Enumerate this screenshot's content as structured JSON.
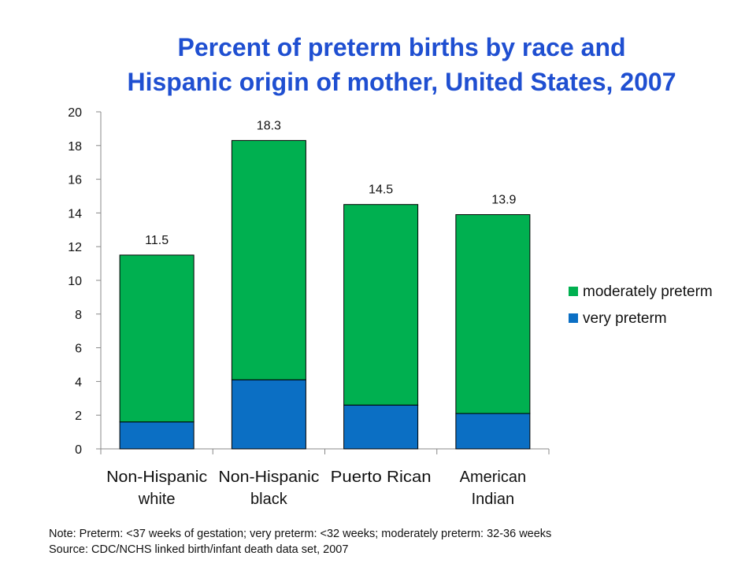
{
  "chart_data": {
    "type": "bar",
    "stacked": true,
    "title": [
      "Percent of preterm births by race and",
      "Hispanic origin of mother, United States, 2007"
    ],
    "categories": [
      [
        "Non-Hispanic",
        "white"
      ],
      [
        "Non-Hispanic",
        "black"
      ],
      [
        "Puerto Rican"
      ],
      [
        "American",
        "Indian"
      ]
    ],
    "series": [
      {
        "name": "very preterm",
        "color": "#0b6fc4",
        "values": [
          1.6,
          4.1,
          2.6,
          2.1
        ]
      },
      {
        "name": "moderately preterm",
        "color": "#00b050",
        "values": [
          9.9,
          14.2,
          11.9,
          11.8
        ]
      }
    ],
    "totals": [
      "11.5",
      "18.3",
      "14.5",
      "13.9"
    ],
    "ylim": [
      0,
      20
    ],
    "yticks": [
      "0",
      "2",
      "4",
      "6",
      "8",
      "10",
      "12",
      "14",
      "16",
      "18",
      "20"
    ],
    "legend_position": "right",
    "legend": [
      "moderately preterm",
      "very preterm"
    ],
    "grid": false
  },
  "notes": {
    "note": "Note:  Preterm: <37 weeks of gestation; very preterm: <32 weeks; moderately preterm: 32-36 weeks",
    "source": "Source:  CDC/NCHS linked birth/infant death data set, 2007"
  }
}
